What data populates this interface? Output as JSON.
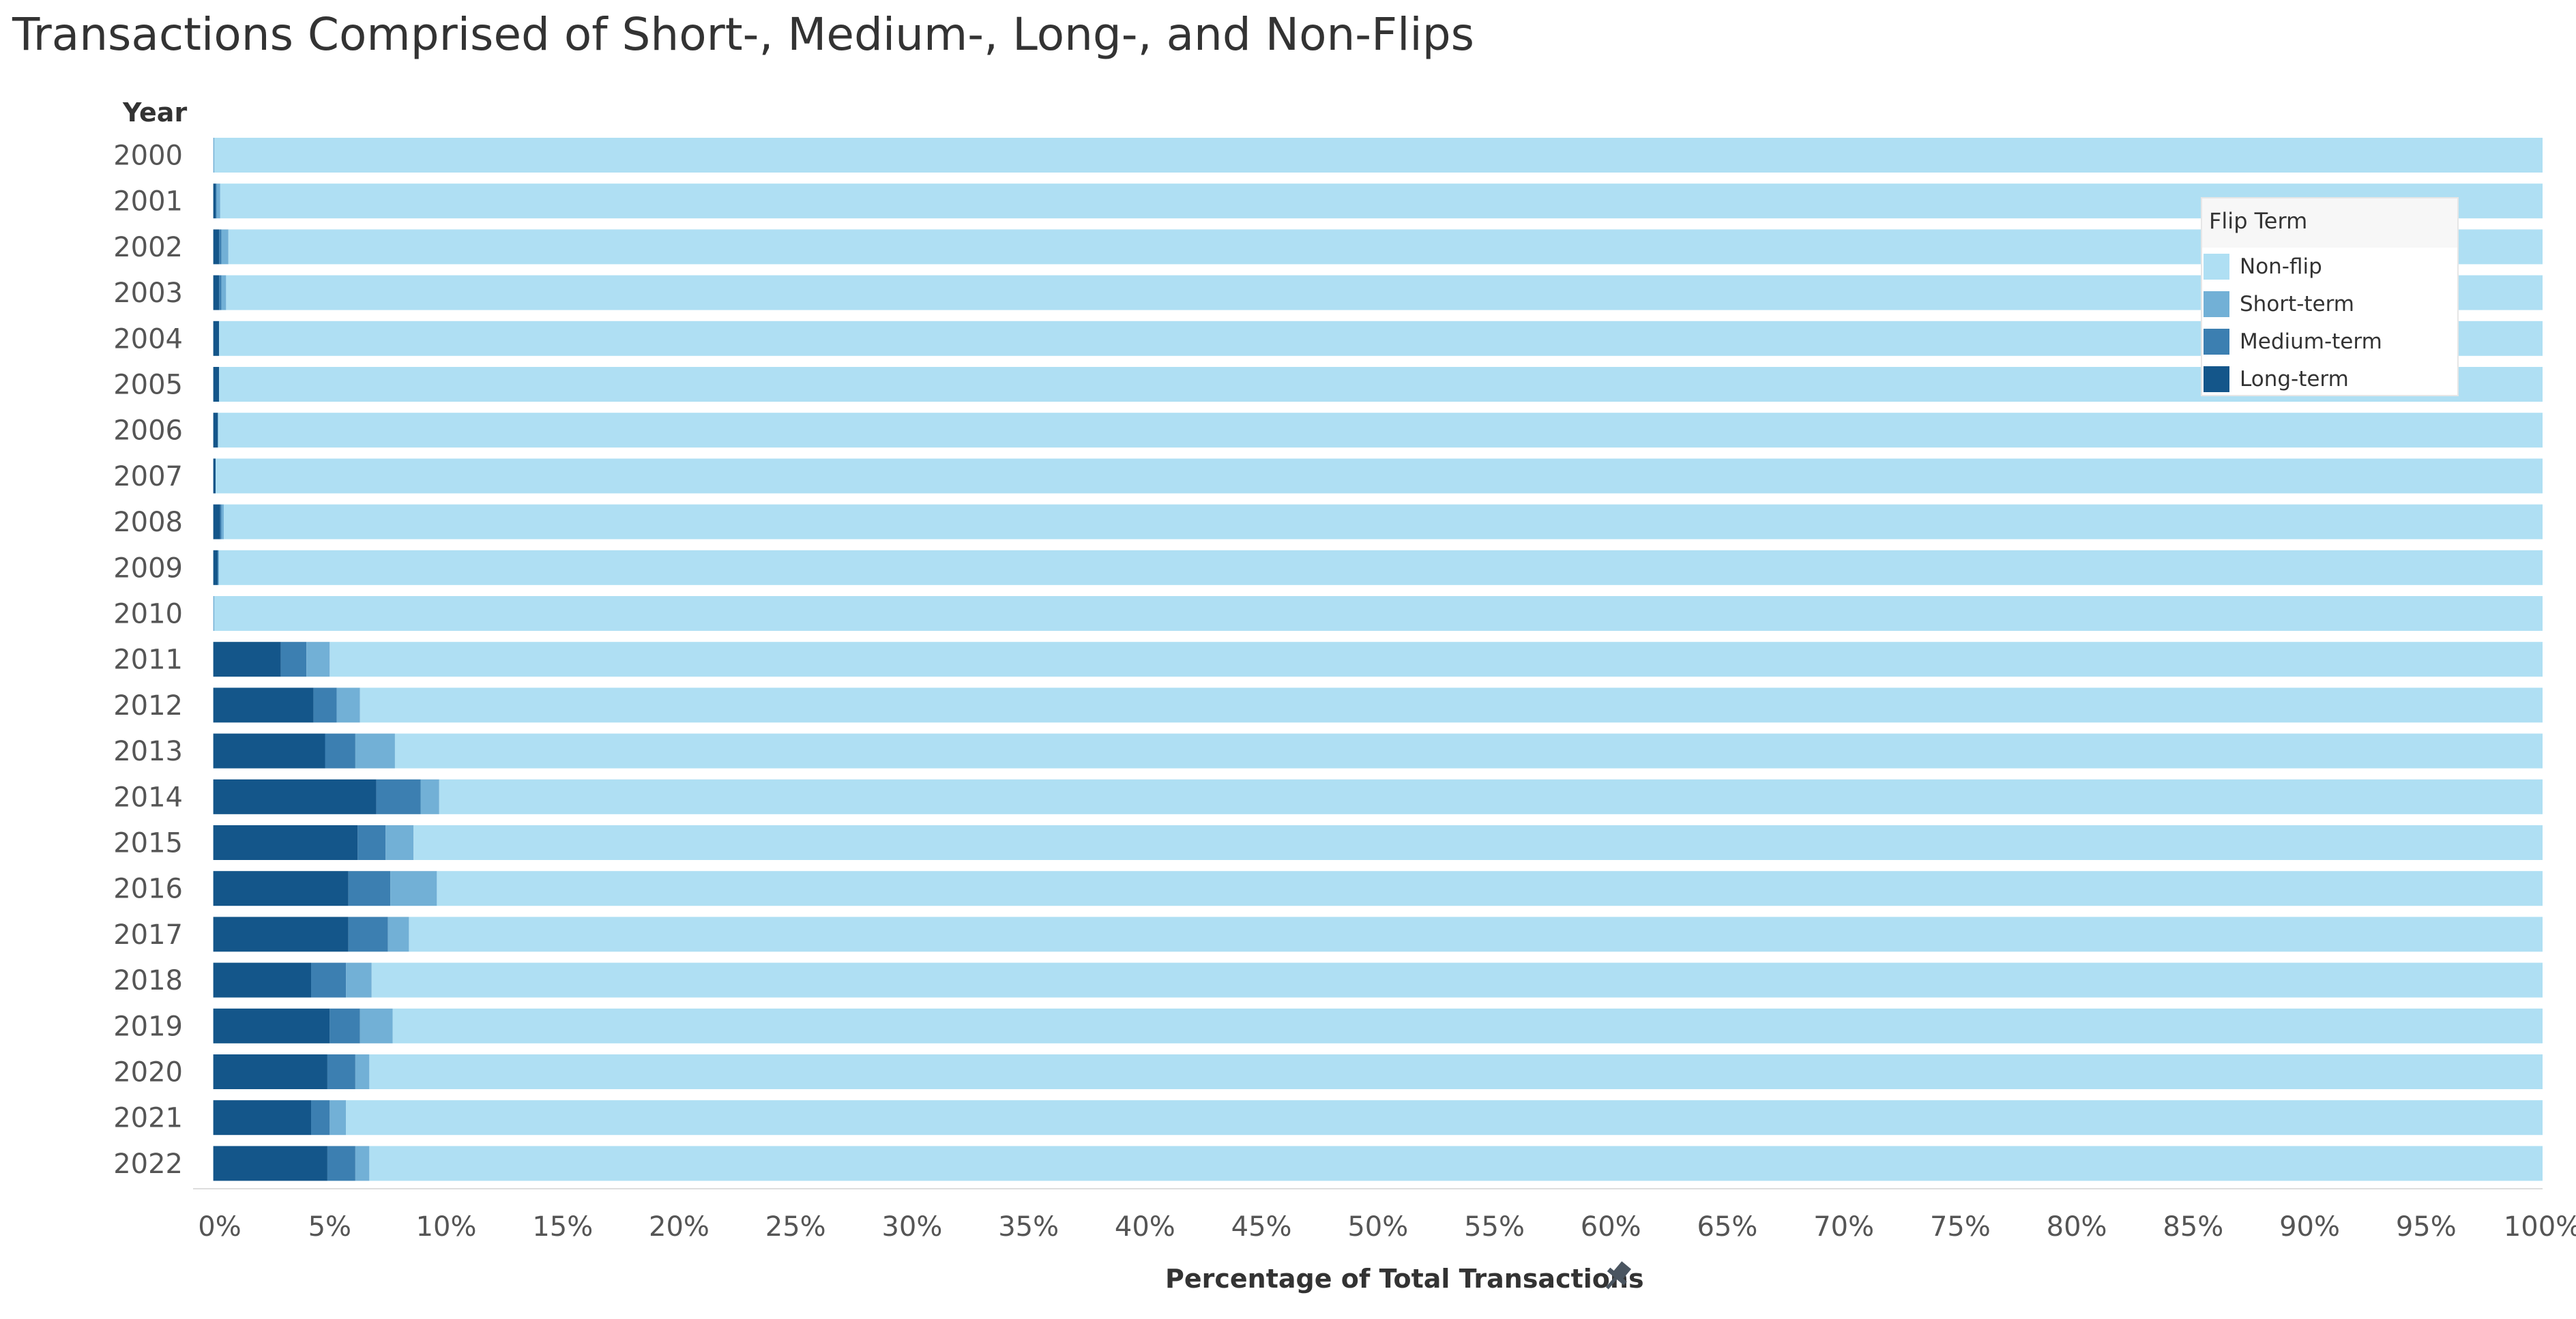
{
  "chart_data": {
    "type": "bar",
    "orientation": "horizontal",
    "stacked": "percent",
    "title": "Transactions Comprised of Short-, Medium-, Long-, and Non-Flips",
    "ylabel": "Year",
    "xlabel": "Percentage of Total Transactions",
    "xlim": [
      -0.75,
      100
    ],
    "x_ticks": [
      "0%",
      "5%",
      "10%",
      "15%",
      "20%",
      "25%",
      "30%",
      "35%",
      "40%",
      "45%",
      "50%",
      "55%",
      "60%",
      "65%",
      "70%",
      "75%",
      "80%",
      "85%",
      "90%",
      "95%",
      "100%"
    ],
    "grid": false,
    "legend_position": "top-right",
    "legend_title": "Flip Term",
    "legend_entries": [
      "Non-flip",
      "Short-term",
      "Medium-term",
      "Long-term"
    ],
    "categories": [
      "2000",
      "2001",
      "2002",
      "2003",
      "2004",
      "2005",
      "2006",
      "2007",
      "2008",
      "2009",
      "2010",
      "2011",
      "2012",
      "2013",
      "2014",
      "2015",
      "2016",
      "2017",
      "2018",
      "2019",
      "2020",
      "2021",
      "2022"
    ],
    "series": [
      {
        "name": "Long-term",
        "color": "#14568a",
        "values": [
          0.0,
          0.1,
          0.25,
          0.25,
          0.25,
          0.25,
          0.2,
          0.1,
          0.3,
          0.2,
          0.0,
          2.9,
          4.3,
          4.8,
          7.0,
          6.2,
          5.8,
          5.8,
          4.2,
          5.0,
          4.9,
          4.2,
          4.9
        ]
      },
      {
        "name": "Medium-term",
        "color": "#3c7fb1",
        "values": [
          0.0,
          0.05,
          0.1,
          0.1,
          0.0,
          0.0,
          0.0,
          0.0,
          0.05,
          0.0,
          0.0,
          1.1,
          1.0,
          1.3,
          1.9,
          1.2,
          1.8,
          1.7,
          1.5,
          1.3,
          1.2,
          0.8,
          1.2
        ]
      },
      {
        "name": "Short-term",
        "color": "#72b0d6",
        "values": [
          0.05,
          0.15,
          0.3,
          0.2,
          0.0,
          0.0,
          0.0,
          0.0,
          0.1,
          0.05,
          0.05,
          1.0,
          1.0,
          1.7,
          0.8,
          1.2,
          2.0,
          0.9,
          1.1,
          1.4,
          0.6,
          0.7,
          0.6
        ]
      },
      {
        "name": "Non-flip",
        "color": "#afdff3",
        "values": [
          99.95,
          99.7,
          99.35,
          99.45,
          99.75,
          99.75,
          99.8,
          99.9,
          99.55,
          99.75,
          99.95,
          95.0,
          93.7,
          92.2,
          90.3,
          91.4,
          90.4,
          91.6,
          93.2,
          92.3,
          93.3,
          94.3,
          93.3
        ]
      }
    ]
  }
}
